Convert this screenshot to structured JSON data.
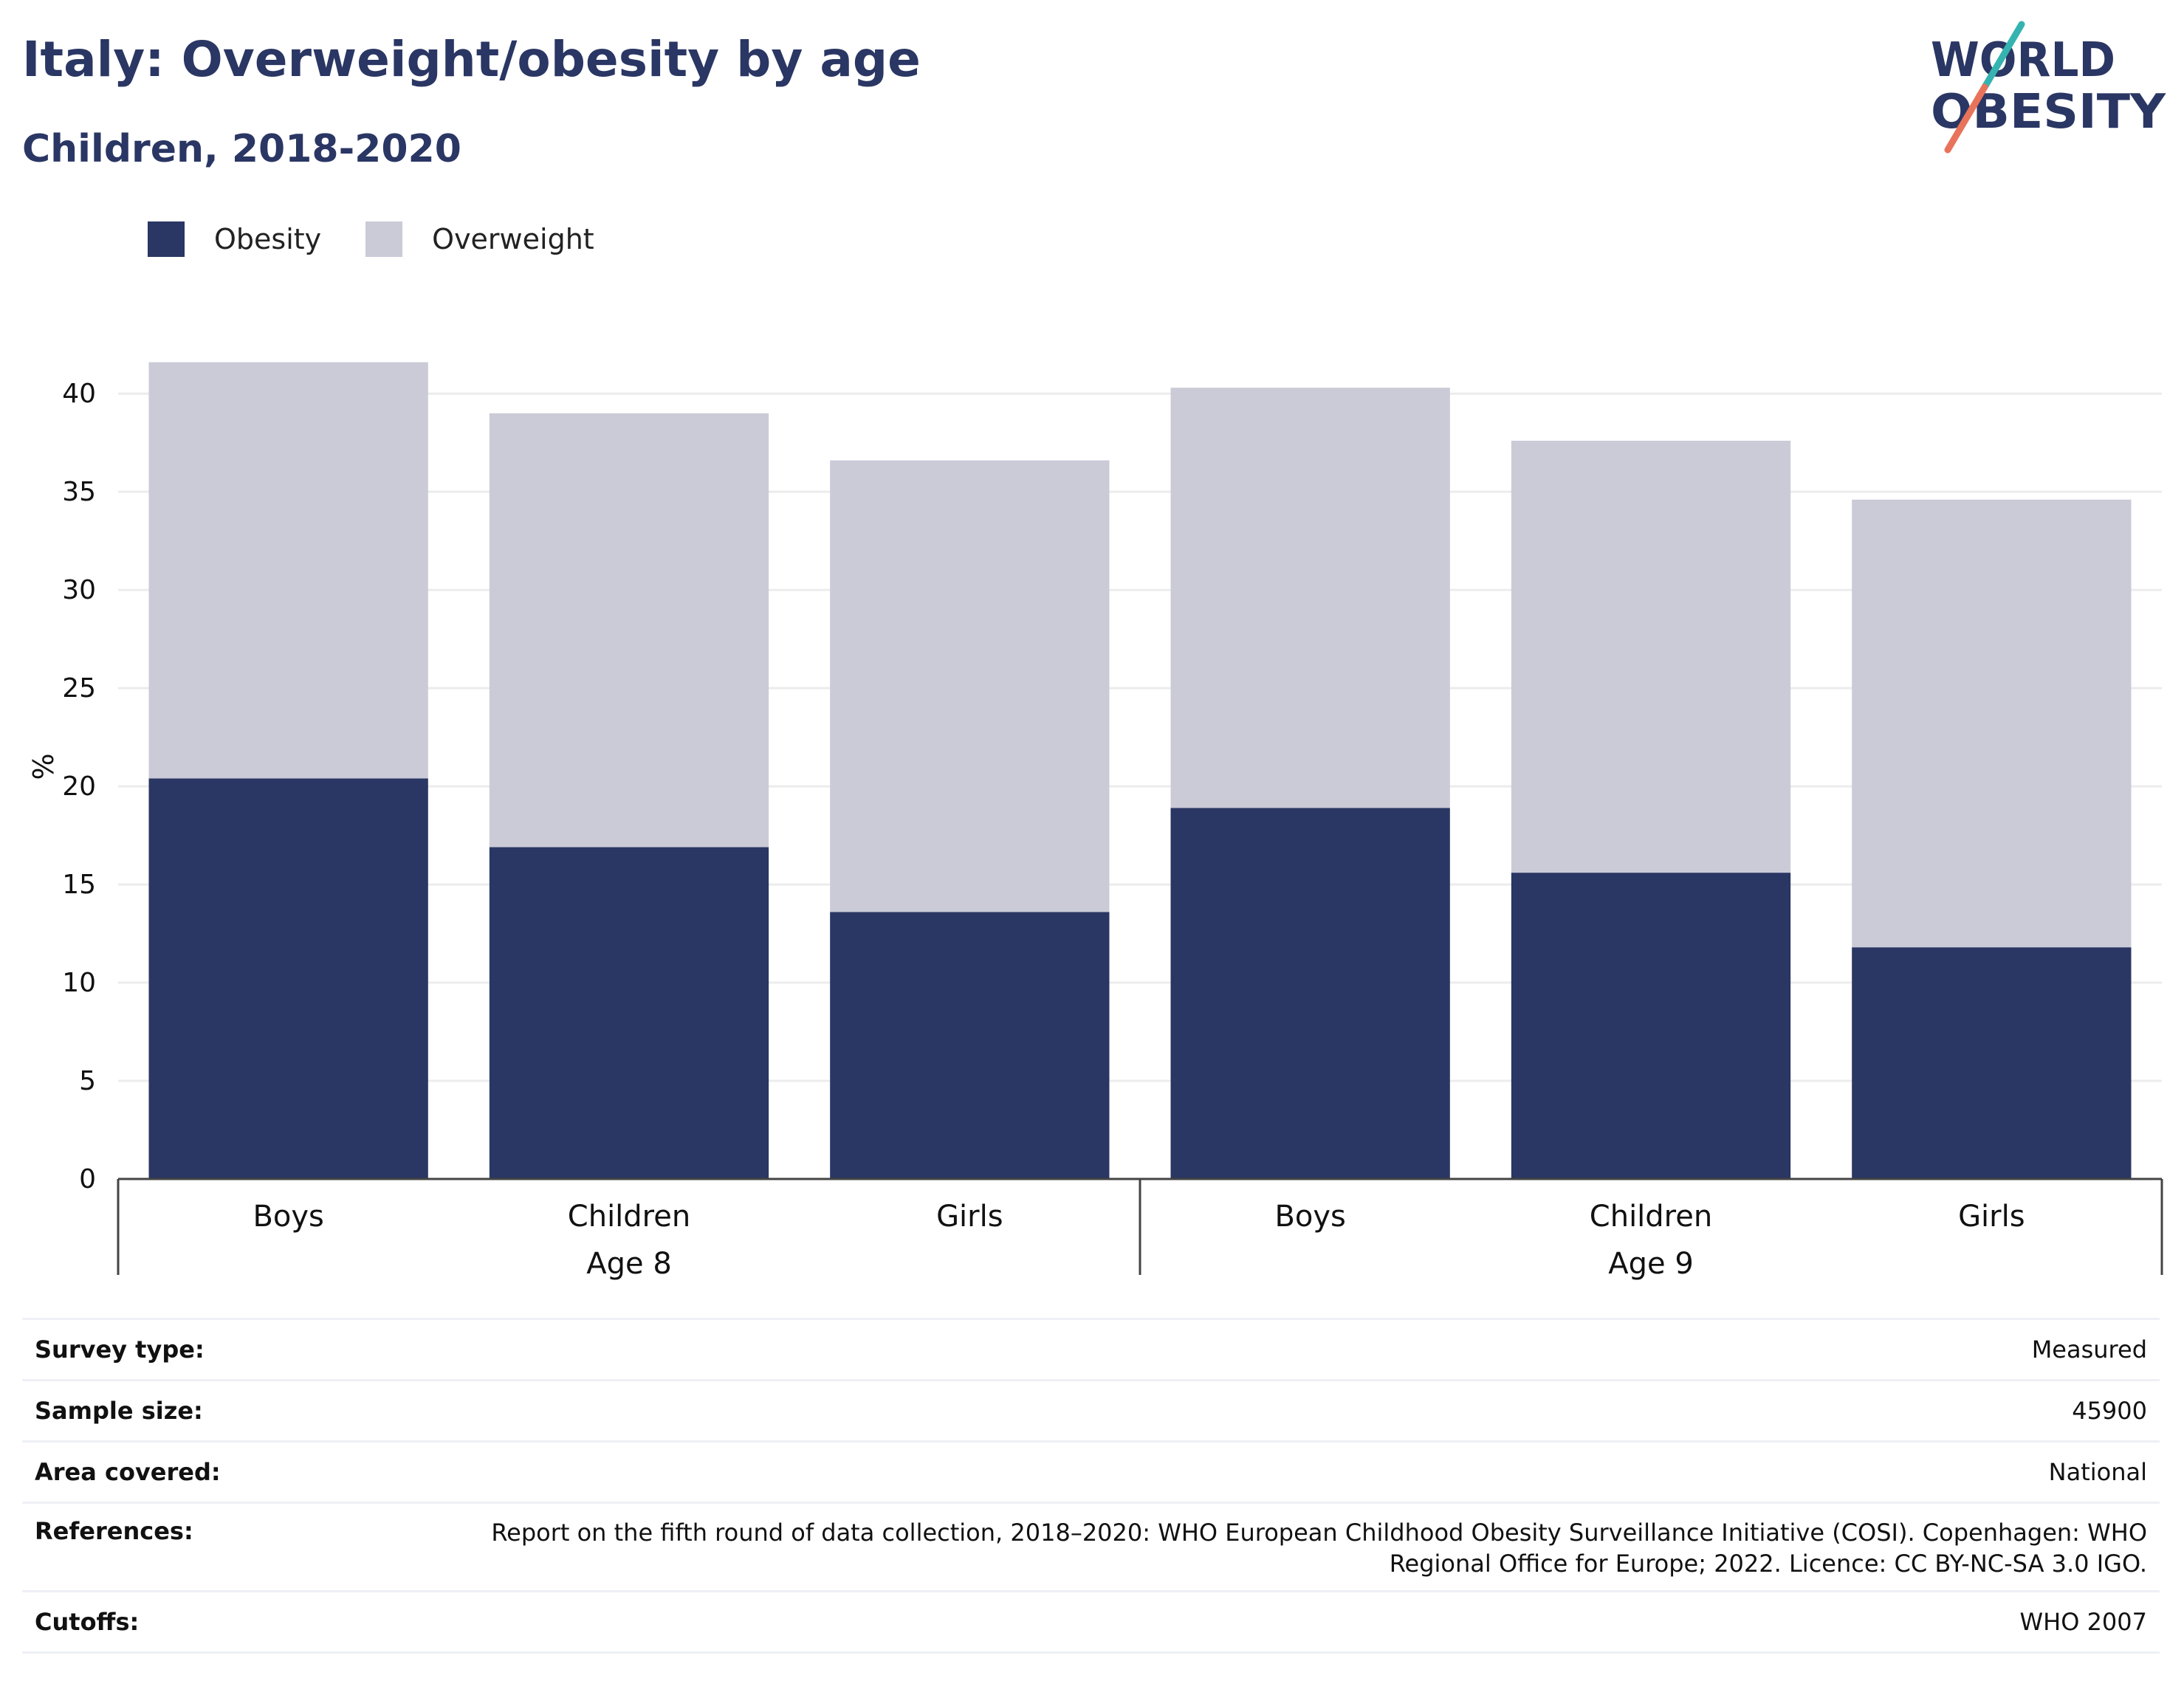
{
  "header": {
    "title": "Italy: Overweight/obesity by age",
    "subtitle": "Children, 2018-2020"
  },
  "logo": {
    "line1": "WORLD",
    "line2": "OBESITY",
    "colors": {
      "text": "#2a3663",
      "teal": "#35b3b0",
      "coral": "#e8735a"
    }
  },
  "legend": [
    {
      "label": "Obesity",
      "color": "#2a3663"
    },
    {
      "label": "Overweight",
      "color": "#cacbd7"
    }
  ],
  "chart_data": {
    "type": "bar",
    "stacked": true,
    "ylabel": "%",
    "ylim": [
      0,
      42
    ],
    "yticks": [
      0,
      5,
      10,
      15,
      20,
      25,
      30,
      35,
      40
    ],
    "grid": true,
    "legend_position": "top-left",
    "groups": [
      {
        "label": "Age 8",
        "categories": [
          "Boys",
          "Children",
          "Girls"
        ]
      },
      {
        "label": "Age 9",
        "categories": [
          "Boys",
          "Children",
          "Girls"
        ]
      }
    ],
    "series": [
      {
        "name": "Obesity",
        "color": "#2a3663",
        "values": [
          20.4,
          16.9,
          13.6,
          18.9,
          15.6,
          11.8
        ]
      },
      {
        "name": "Overweight",
        "color": "#cacbd7",
        "values": [
          21.2,
          22.1,
          23.0,
          21.4,
          22.0,
          22.8
        ]
      }
    ]
  },
  "info": {
    "survey_type": {
      "label": "Survey type:",
      "value": "Measured"
    },
    "sample_size": {
      "label": "Sample size:",
      "value": "45900"
    },
    "area_covered": {
      "label": "Area covered:",
      "value": "National"
    },
    "references": {
      "label": "References:",
      "value": "Report on the fifth round of data collection, 2018–2020: WHO European Childhood Obesity Surveillance Initiative (COSI). Copenhagen: WHO Regional Office for Europe; 2022. Licence: CC BY-NC-SA 3.0 IGO."
    },
    "cutoffs": {
      "label": "Cutoffs:",
      "value": "WHO 2007"
    }
  }
}
